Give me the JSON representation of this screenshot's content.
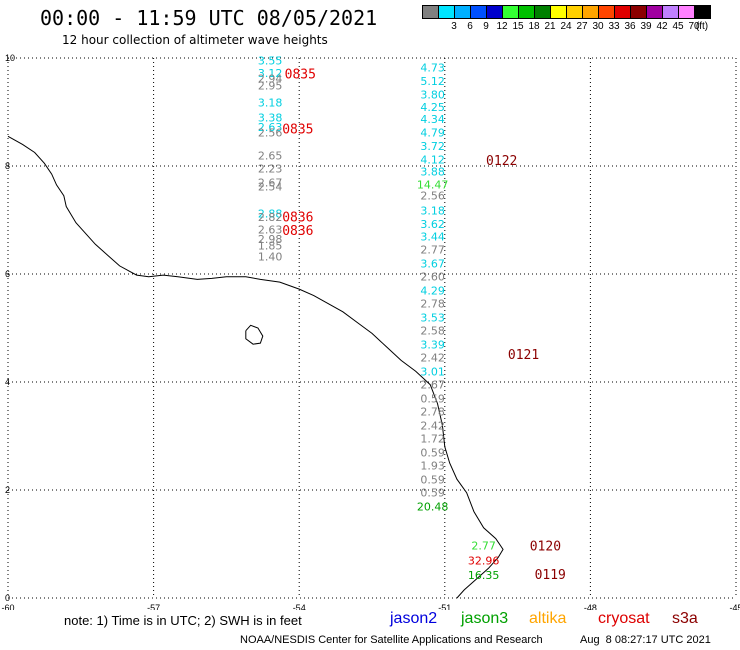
{
  "header": {
    "title": "00:00 - 11:59 UTC 08/05/2021",
    "subtitle": "12 hour collection of altimeter wave heights"
  },
  "legend": {
    "unit": "(ft)",
    "swatches": [
      {
        "color": "#808080",
        "label": ""
      },
      {
        "color": "#00e5ff",
        "label": "3"
      },
      {
        "color": "#00b0ff",
        "label": "6"
      },
      {
        "color": "#0050ff",
        "label": "9"
      },
      {
        "color": "#0000cd",
        "label": "12"
      },
      {
        "color": "#33ff33",
        "label": "15"
      },
      {
        "color": "#00c000",
        "label": "18"
      },
      {
        "color": "#008000",
        "label": "21"
      },
      {
        "color": "#ffff00",
        "label": "24"
      },
      {
        "color": "#ffd000",
        "label": "27"
      },
      {
        "color": "#ffa500",
        "label": "30"
      },
      {
        "color": "#ff4500",
        "label": "33"
      },
      {
        "color": "#e00000",
        "label": "36"
      },
      {
        "color": "#8b0000",
        "label": "39"
      },
      {
        "color": "#a000a0",
        "label": "42"
      },
      {
        "color": "#c080ff",
        "label": "45"
      },
      {
        "color": "#ff80ff",
        "label": "70"
      },
      {
        "color": "#000000",
        "label": ""
      }
    ]
  },
  "map": {
    "lon_range": [
      -60,
      -45
    ],
    "lat_range": [
      0,
      10
    ],
    "x_ticks": [
      {
        "v": -60,
        "t": "-60"
      },
      {
        "v": -57,
        "t": "-57"
      },
      {
        "v": -54,
        "t": "-54"
      },
      {
        "v": -51,
        "t": "-51"
      },
      {
        "v": -48,
        "t": "-48"
      },
      {
        "v": -45,
        "t": "-45"
      }
    ],
    "y_ticks": [
      {
        "v": 0,
        "t": "0"
      },
      {
        "v": 2,
        "t": "2"
      },
      {
        "v": 4,
        "t": "4"
      },
      {
        "v": 6,
        "t": "6"
      },
      {
        "v": 8,
        "t": "8"
      },
      {
        "v": 10,
        "t": "10"
      }
    ],
    "gridlines": true,
    "coastline": [
      [
        -60,
        8.55
      ],
      [
        -59.7,
        8.4
      ],
      [
        -59.45,
        8.25
      ],
      [
        -59.25,
        8.05
      ],
      [
        -59.1,
        7.85
      ],
      [
        -59.0,
        7.65
      ],
      [
        -58.85,
        7.45
      ],
      [
        -58.8,
        7.25
      ],
      [
        -58.7,
        7.1
      ],
      [
        -58.6,
        6.95
      ],
      [
        -58.45,
        6.8
      ],
      [
        -58.2,
        6.55
      ],
      [
        -57.95,
        6.35
      ],
      [
        -57.7,
        6.15
      ],
      [
        -57.35,
        5.98
      ],
      [
        -57.1,
        5.95
      ],
      [
        -56.8,
        5.98
      ],
      [
        -56.5,
        5.95
      ],
      [
        -56.1,
        5.9
      ],
      [
        -55.8,
        5.92
      ],
      [
        -55.5,
        5.95
      ],
      [
        -55.1,
        5.95
      ],
      [
        -54.8,
        5.9
      ],
      [
        -54.4,
        5.85
      ],
      [
        -54.0,
        5.72
      ],
      [
        -53.7,
        5.6
      ],
      [
        -53.4,
        5.45
      ],
      [
        -53.1,
        5.3
      ],
      [
        -52.8,
        5.1
      ],
      [
        -52.5,
        4.9
      ],
      [
        -52.2,
        4.65
      ],
      [
        -51.9,
        4.4
      ],
      [
        -51.6,
        4.2
      ],
      [
        -51.3,
        3.95
      ],
      [
        -51.15,
        3.6
      ],
      [
        -51.05,
        3.2
      ],
      [
        -51.0,
        2.8
      ],
      [
        -50.9,
        2.5
      ],
      [
        -50.75,
        2.2
      ],
      [
        -50.55,
        1.95
      ],
      [
        -50.4,
        1.6
      ],
      [
        -50.2,
        1.3
      ],
      [
        -49.95,
        1.1
      ],
      [
        -49.8,
        0.9
      ],
      [
        -49.9,
        0.75
      ],
      [
        -50.1,
        0.55
      ],
      [
        -50.35,
        0.35
      ],
      [
        -50.6,
        0.15
      ],
      [
        -50.75,
        0.0
      ]
    ],
    "island": [
      [
        -55.1,
        4.95
      ],
      [
        -55.0,
        5.05
      ],
      [
        -54.85,
        5.0
      ],
      [
        -54.75,
        4.85
      ],
      [
        -54.8,
        4.72
      ],
      [
        -54.95,
        4.7
      ],
      [
        -55.1,
        4.8
      ],
      [
        -55.1,
        4.95
      ]
    ],
    "tracks": [
      {
        "lon": -54.6,
        "points": [
          {
            "lat": 9.88,
            "v": "3.55",
            "c": "#00cfe0"
          },
          {
            "lat": 9.65,
            "v": "3.12",
            "c": "#00cfe0"
          },
          {
            "lat": 9.55,
            "v": "2.94",
            "c": "#808080"
          },
          {
            "lat": 9.42,
            "v": "2.95",
            "c": "#808080"
          },
          {
            "lat": 9.1,
            "v": "3.18",
            "c": "#00cfe0"
          },
          {
            "lat": 8.82,
            "v": "3.38",
            "c": "#00cfe0"
          },
          {
            "lat": 8.65,
            "v": "2.63",
            "c": "#00cfe0"
          },
          {
            "lat": 8.55,
            "v": "2.56",
            "c": "#808080"
          },
          {
            "lat": 8.12,
            "v": "2.65",
            "c": "#808080"
          },
          {
            "lat": 7.88,
            "v": "2.23",
            "c": "#808080"
          },
          {
            "lat": 7.62,
            "v": "2.67",
            "c": "#808080"
          },
          {
            "lat": 7.55,
            "v": "2.54",
            "c": "#808080"
          },
          {
            "lat": 7.05,
            "v": "2.88",
            "c": "#00cfe0"
          },
          {
            "lat": 6.98,
            "v": "2.82",
            "c": "#808080"
          },
          {
            "lat": 6.75,
            "v": "2.63",
            "c": "#808080"
          },
          {
            "lat": 6.57,
            "v": "2.98",
            "c": "#808080"
          },
          {
            "lat": 6.45,
            "v": "1.85",
            "c": "#808080"
          },
          {
            "lat": 6.25,
            "v": "1.40",
            "c": "#808080"
          }
        ]
      },
      {
        "lon": -51.25,
        "points": [
          {
            "lat": 9.75,
            "v": "4.73",
            "c": "#00cfe0"
          },
          {
            "lat": 9.5,
            "v": "5.12",
            "c": "#00cfe0"
          },
          {
            "lat": 9.25,
            "v": "3.80",
            "c": "#00cfe0"
          },
          {
            "lat": 9.02,
            "v": "4.25",
            "c": "#00cfe0"
          },
          {
            "lat": 8.8,
            "v": "4.34",
            "c": "#00cfe0"
          },
          {
            "lat": 8.55,
            "v": "4.79",
            "c": "#00cfe0"
          },
          {
            "lat": 8.3,
            "v": "3.72",
            "c": "#00cfe0"
          },
          {
            "lat": 8.05,
            "v": "4.12",
            "c": "#00cfe0"
          },
          {
            "lat": 7.82,
            "v": "3.88",
            "c": "#00cfe0"
          },
          {
            "lat": 7.58,
            "v": "14.47",
            "c": "#33dd33"
          },
          {
            "lat": 7.38,
            "v": "2.56",
            "c": "#808080"
          },
          {
            "lat": 7.1,
            "v": "3.18",
            "c": "#00cfe0"
          },
          {
            "lat": 6.85,
            "v": "3.62",
            "c": "#00cfe0"
          },
          {
            "lat": 6.62,
            "v": "3.44",
            "c": "#00cfe0"
          },
          {
            "lat": 6.38,
            "v": "2.77",
            "c": "#808080"
          },
          {
            "lat": 6.12,
            "v": "3.67",
            "c": "#00cfe0"
          },
          {
            "lat": 5.88,
            "v": "2.60",
            "c": "#808080"
          },
          {
            "lat": 5.62,
            "v": "4.29",
            "c": "#00cfe0"
          },
          {
            "lat": 5.38,
            "v": "2.78",
            "c": "#808080"
          },
          {
            "lat": 5.12,
            "v": "3.53",
            "c": "#00cfe0"
          },
          {
            "lat": 4.88,
            "v": "2.58",
            "c": "#808080"
          },
          {
            "lat": 4.62,
            "v": "3.39",
            "c": "#00cfe0"
          },
          {
            "lat": 4.38,
            "v": "2.42",
            "c": "#808080"
          },
          {
            "lat": 4.12,
            "v": "3.01",
            "c": "#00cfe0"
          },
          {
            "lat": 3.88,
            "v": "2.67",
            "c": "#808080"
          },
          {
            "lat": 3.62,
            "v": "0.59",
            "c": "#808080"
          },
          {
            "lat": 3.38,
            "v": "2.78",
            "c": "#808080"
          },
          {
            "lat": 3.12,
            "v": "2.42",
            "c": "#808080"
          },
          {
            "lat": 2.88,
            "v": "1.72",
            "c": "#808080"
          },
          {
            "lat": 2.62,
            "v": "0.59",
            "c": "#808080"
          },
          {
            "lat": 2.38,
            "v": "1.93",
            "c": "#808080"
          },
          {
            "lat": 2.12,
            "v": "0.59",
            "c": "#808080"
          },
          {
            "lat": 1.88,
            "v": "0.59",
            "c": "#808080"
          },
          {
            "lat": 1.62,
            "v": "20.48",
            "c": "#00a000"
          }
        ]
      },
      {
        "lon": -50.2,
        "points": [
          {
            "lat": 0.9,
            "v": "2.77",
            "c": "#33dd33"
          },
          {
            "lat": 0.62,
            "v": "32.96",
            "c": "#e00000"
          },
          {
            "lat": 0.35,
            "v": "16.35",
            "c": "#00a000"
          }
        ]
      }
    ],
    "pass_times": [
      {
        "lon": -54.3,
        "lat": 9.62,
        "t": "0835",
        "c": "#e00000"
      },
      {
        "lon": -54.35,
        "lat": 8.6,
        "t": "0835",
        "c": "#e00000"
      },
      {
        "lon": -54.35,
        "lat": 6.97,
        "t": "0836",
        "c": "#e00000"
      },
      {
        "lon": -54.35,
        "lat": 6.72,
        "t": "0836",
        "c": "#e00000"
      },
      {
        "lon": -50.15,
        "lat": 8.02,
        "t": "0122",
        "c": "#8b0000"
      },
      {
        "lon": -49.7,
        "lat": 4.43,
        "t": "0121",
        "c": "#8b0000"
      },
      {
        "lon": -49.25,
        "lat": 0.88,
        "t": "0120",
        "c": "#8b0000"
      },
      {
        "lon": -49.15,
        "lat": 0.35,
        "t": "0119",
        "c": "#8b0000"
      }
    ]
  },
  "note": "note: 1) Time is in UTC; 2) SWH is in feet",
  "satellites": [
    {
      "name": "jason2",
      "color": "#0000dd"
    },
    {
      "name": "jason3",
      "color": "#00a000"
    },
    {
      "name": "altika",
      "color": "#ffa500"
    },
    {
      "name": "cryosat",
      "color": "#dd0000"
    },
    {
      "name": "s3a",
      "color": "#8b0000"
    }
  ],
  "footer": {
    "credit": "NOAA/NESDIS Center for Satellite Applications and Research",
    "timestamp": "Aug  8 08:27:17 UTC 2021"
  }
}
